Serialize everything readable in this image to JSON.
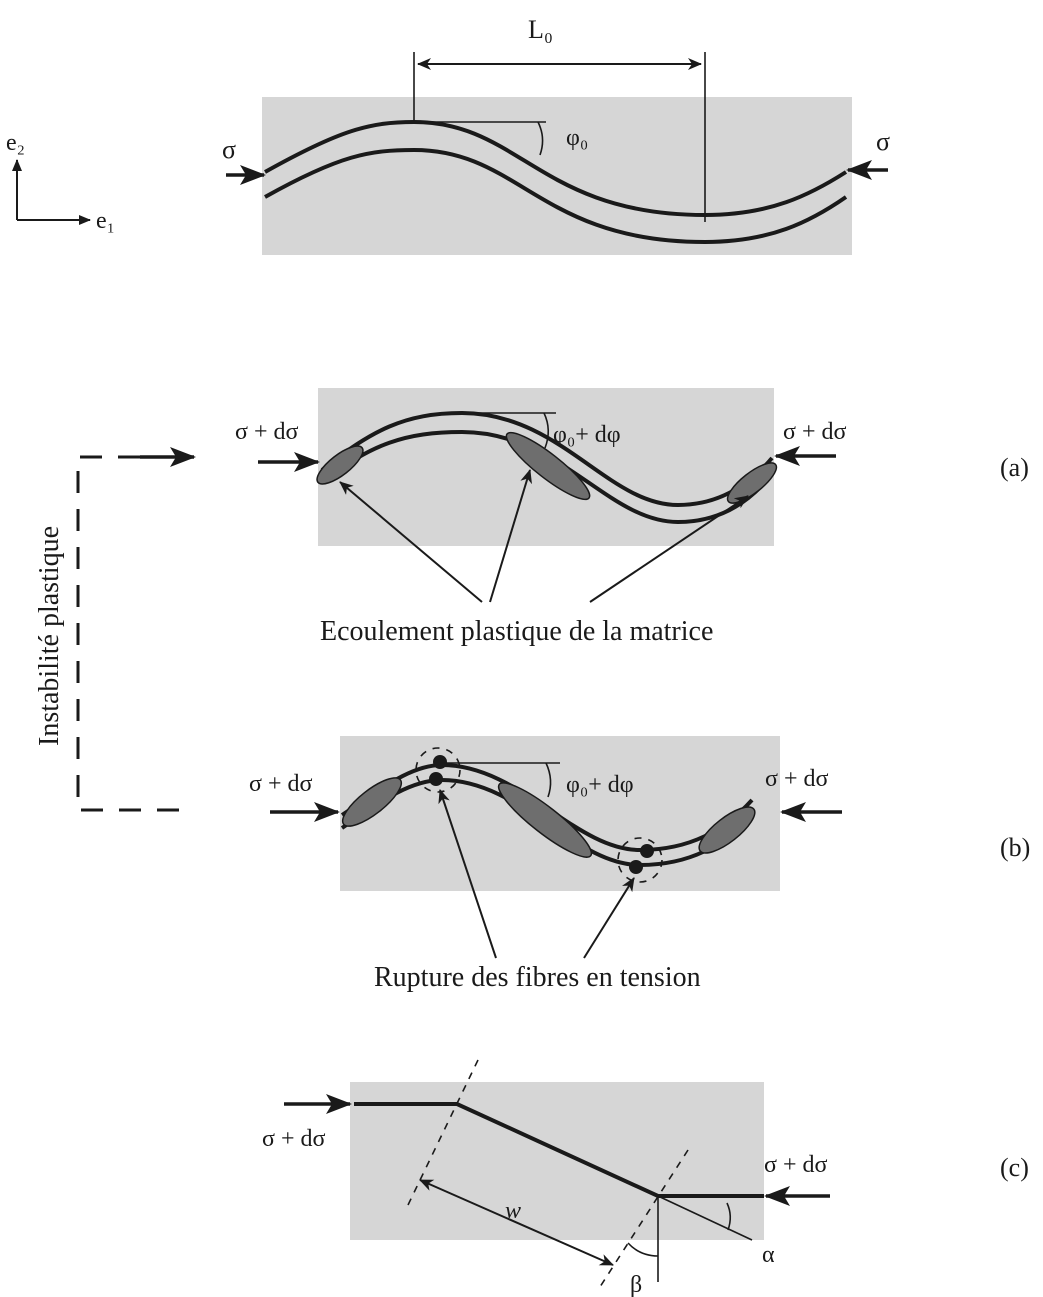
{
  "top": {
    "length_label": "L₀",
    "angle_label": "φ₀",
    "stress_left": "σ",
    "stress_right": "σ",
    "axis_e2": "e₂",
    "axis_e1": "e₁"
  },
  "side_label": "Instabilité plastique",
  "panel_a": {
    "tag": "(a)",
    "stress_left": "σ + dσ",
    "stress_right": "σ + dσ",
    "angle_label": "φ₀+ dφ",
    "caption": "Ecoulement plastique de la matrice"
  },
  "panel_b": {
    "tag": "(b)",
    "stress_left": "σ + dσ",
    "stress_right": "σ + dσ",
    "angle_label": "φ₀+ dφ",
    "caption": "Rupture des fibres en tension"
  },
  "panel_c": {
    "tag": "(c)",
    "stress_left": "σ + dσ",
    "stress_right": "σ + dσ",
    "width_label": "w",
    "alpha_label": "α",
    "beta_label": "β"
  }
}
